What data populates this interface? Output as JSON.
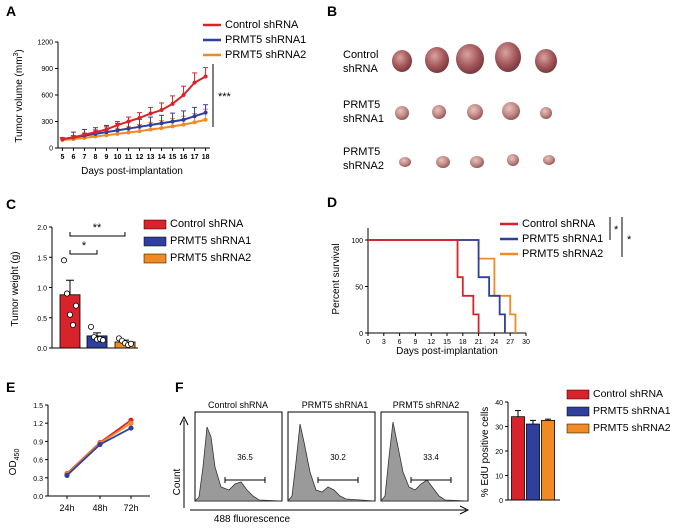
{
  "colors": {
    "control": "#d9232a",
    "shrna1": "#2e3f9e",
    "shrna2": "#f08a24"
  },
  "series_names": [
    "Control shRNA",
    "PRMT5 shRNA1",
    "PRMT5 shRNA2"
  ],
  "panelA": {
    "letter": "A",
    "ylabel": "Tumor volume (mm",
    "ylabel_sup": "3",
    "ylabel_close": ")",
    "xlabel": "Days post-implantation",
    "sig": "***"
  },
  "panelB": {
    "letter": "B",
    "row_labels": [
      [
        "Control",
        "shRNA"
      ],
      [
        "PRMT5",
        "shRNA1"
      ],
      [
        "PRMT5",
        "shRNA2"
      ]
    ]
  },
  "panelC": {
    "letter": "C",
    "ylabel": "Tumor weight (g)",
    "sig_top": "**",
    "sig_low": "*"
  },
  "panelD": {
    "letter": "D",
    "ylabel": "Percent survival",
    "xlabel": "Days post-implantation",
    "sig": [
      "*",
      "*"
    ]
  },
  "panelE": {
    "letter": "E",
    "ylabel": "OD",
    "ylabel_sub": "450"
  },
  "panelF": {
    "letter": "F",
    "histogram_titles": [
      "Control shRNA",
      "PRMT5 shRNA1",
      "PRMT5 shRNA2"
    ],
    "gate_values": [
      "36.5",
      "30.2",
      "33.4"
    ],
    "ylabel": "Count",
    "xlabel": "488 fluorescence",
    "bar_ylabel": "% EdU positive cells"
  },
  "chart_data": [
    {
      "panel": "A",
      "type": "line",
      "x": [
        5,
        6,
        7,
        8,
        9,
        10,
        11,
        12,
        13,
        14,
        15,
        16,
        17,
        18
      ],
      "xlabel": "Days post-implantation",
      "ylabel": "Tumor volume (mm3)",
      "ylim": [
        0,
        1200
      ],
      "yticks": [
        0,
        300,
        600,
        900,
        1200
      ],
      "series": [
        {
          "name": "Control shRNA",
          "values": [
            100,
            120,
            150,
            180,
            210,
            260,
            300,
            340,
            390,
            430,
            500,
            600,
            740,
            810
          ],
          "err": [
            15,
            20,
            20,
            25,
            30,
            40,
            50,
            60,
            70,
            80,
            90,
            100,
            110,
            100
          ]
        },
        {
          "name": "PRMT5 shRNA1",
          "values": [
            100,
            120,
            140,
            160,
            180,
            200,
            220,
            240,
            260,
            280,
            300,
            320,
            360,
            400
          ],
          "err": [
            15,
            60,
            70,
            70,
            75,
            80,
            80,
            85,
            90,
            90,
            95,
            100,
            100,
            90
          ]
        },
        {
          "name": "PRMT5 shRNA2",
          "values": [
            90,
            100,
            115,
            130,
            145,
            160,
            175,
            190,
            210,
            225,
            245,
            265,
            290,
            320
          ],
          "err": [
            30,
            40,
            50,
            55,
            60,
            65,
            70,
            75,
            80,
            85,
            90,
            95,
            100,
            120
          ]
        }
      ]
    },
    {
      "panel": "C",
      "type": "bar",
      "categories": [
        "Control shRNA",
        "PRMT5 shRNA1",
        "PRMT5 shRNA2"
      ],
      "values": [
        0.88,
        0.2,
        0.1
      ],
      "err": [
        0.24,
        0.05,
        0.03
      ],
      "points": [
        [
          1.45,
          0.9,
          0.55,
          0.38,
          0.7
        ],
        [
          0.35,
          0.18,
          0.14,
          0.15,
          0.13
        ],
        [
          0.16,
          0.12,
          0.08,
          0.05,
          0.07
        ]
      ],
      "ylabel": "Tumor weight (g)",
      "ylim": [
        0,
        2.0
      ],
      "yticks": [
        0.0,
        0.5,
        1.0,
        1.5,
        2.0
      ]
    },
    {
      "panel": "D",
      "type": "line",
      "xlabel": "Days post-implantation",
      "ylabel": "Percent survival",
      "xlim": [
        0,
        30
      ],
      "xticks": [
        0,
        3,
        6,
        9,
        12,
        15,
        18,
        21,
        24,
        27,
        30
      ],
      "ylim": [
        0,
        100
      ],
      "yticks": [
        0,
        50,
        100
      ],
      "series": [
        {
          "name": "Control shRNA",
          "steps": [
            [
              0,
              100
            ],
            [
              17,
              100
            ],
            [
              17,
              60
            ],
            [
              18,
              60
            ],
            [
              18,
              40
            ],
            [
              20,
              40
            ],
            [
              20,
              20
            ],
            [
              21,
              20
            ],
            [
              21,
              0
            ]
          ]
        },
        {
          "name": "PRMT5 shRNA1",
          "steps": [
            [
              0,
              100
            ],
            [
              21,
              100
            ],
            [
              21,
              60
            ],
            [
              23,
              60
            ],
            [
              23,
              40
            ],
            [
              25,
              40
            ],
            [
              25,
              20
            ],
            [
              26,
              20
            ],
            [
              26,
              0
            ]
          ]
        },
        {
          "name": "PRMT5 shRNA2",
          "steps": [
            [
              0,
              100
            ],
            [
              21,
              100
            ],
            [
              21,
              80
            ],
            [
              24,
              80
            ],
            [
              24,
              40
            ],
            [
              27,
              40
            ],
            [
              27,
              20
            ],
            [
              28,
              20
            ],
            [
              28,
              0
            ]
          ]
        }
      ]
    },
    {
      "panel": "E",
      "type": "line",
      "categories": [
        "24h",
        "48h",
        "72h"
      ],
      "ylim": [
        0,
        1.5
      ],
      "yticks": [
        0.0,
        0.3,
        0.6,
        0.9,
        1.2,
        1.5
      ],
      "ylabel": "OD450",
      "series": [
        {
          "name": "Control shRNA",
          "values": [
            0.37,
            0.88,
            1.25
          ]
        },
        {
          "name": "PRMT5 shRNA1",
          "values": [
            0.34,
            0.85,
            1.12
          ]
        },
        {
          "name": "PRMT5 shRNA2",
          "values": [
            0.36,
            0.87,
            1.2
          ]
        }
      ]
    },
    {
      "panel": "F",
      "type": "bar",
      "categories": [
        "Control shRNA",
        "PRMT5 shRNA1",
        "PRMT5 shRNA2"
      ],
      "values": [
        34,
        31,
        32.5
      ],
      "err": [
        2.5,
        1.5,
        0.5
      ],
      "ylabel": "% EdU positive cells",
      "ylim": [
        0,
        40
      ],
      "yticks": [
        0,
        10,
        20,
        30,
        40
      ]
    }
  ]
}
